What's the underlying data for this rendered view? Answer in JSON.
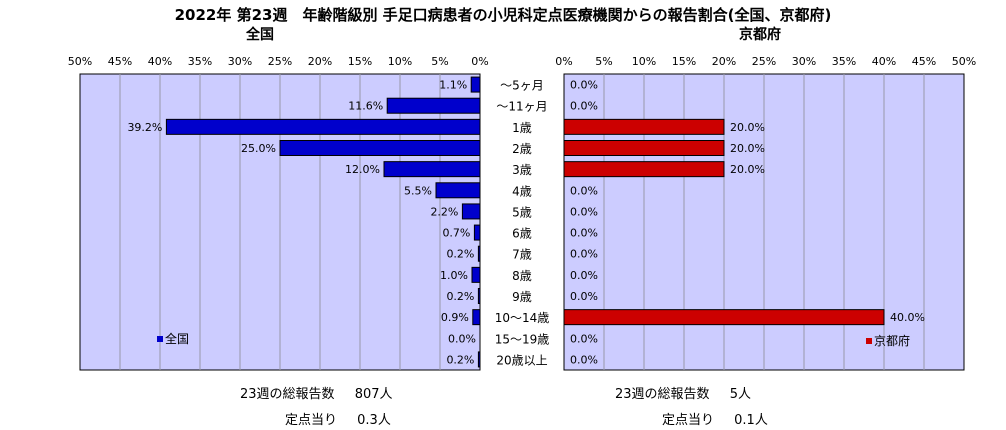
{
  "title": "2022年 第23週　年齢階級別 手足口病患者の小児科定点医療機関からの報告割合(全国、京都府)",
  "colors": {
    "plot_bg": "#ccccff",
    "grid": "#9999aa",
    "national_bar": "#0000cc",
    "kyoto_bar": "#cc0000",
    "bar_stroke": "#000000"
  },
  "footer": {
    "national": {
      "total_label": "23週の総報告数",
      "total_value": "807人",
      "per_label": "定点当り",
      "per_value": "0.3人"
    },
    "kyoto": {
      "total_label": "23週の総報告数",
      "total_value": "5人",
      "per_label": "定点当り",
      "per_value": "0.1人"
    }
  },
  "chart_data": [
    {
      "type": "bar",
      "orientation": "horizontal",
      "subtitle": "全国",
      "x_direction": "reversed",
      "xlim": [
        0,
        50
      ],
      "xticks": [
        "50%",
        "45%",
        "40%",
        "35%",
        "30%",
        "25%",
        "20%",
        "15%",
        "10%",
        "5%",
        "0%"
      ],
      "categories": [
        "～5ヶ月",
        "～11ヶ月",
        "1歳",
        "2歳",
        "3歳",
        "4歳",
        "5歳",
        "6歳",
        "7歳",
        "8歳",
        "9歳",
        "10～14歳",
        "15～19歳",
        "20歳以上"
      ],
      "series": [
        {
          "name": "全国",
          "values": [
            1.1,
            11.6,
            39.2,
            25.0,
            12.0,
            5.5,
            2.2,
            0.7,
            0.2,
            1.0,
            0.2,
            0.9,
            0.0,
            0.2
          ],
          "labels": [
            "1.1%",
            "11.6%",
            "39.2%",
            "25.0%",
            "12.0%",
            "5.5%",
            "2.2%",
            "0.7%",
            "0.2%",
            "1.0%",
            "0.2%",
            "0.9%",
            "0.0%",
            "0.2%"
          ]
        }
      ],
      "legend": "bottom-left",
      "grid": true
    },
    {
      "type": "bar",
      "orientation": "horizontal",
      "subtitle": "京都府",
      "x_direction": "normal",
      "xlim": [
        0,
        50
      ],
      "xticks": [
        "0%",
        "5%",
        "10%",
        "15%",
        "20%",
        "25%",
        "30%",
        "35%",
        "40%",
        "45%",
        "50%"
      ],
      "categories": [
        "～5ヶ月",
        "～11ヶ月",
        "1歳",
        "2歳",
        "3歳",
        "4歳",
        "5歳",
        "6歳",
        "7歳",
        "8歳",
        "9歳",
        "10～14歳",
        "15～19歳",
        "20歳以上"
      ],
      "series": [
        {
          "name": "京都府",
          "values": [
            0.0,
            0.0,
            20.0,
            20.0,
            20.0,
            0.0,
            0.0,
            0.0,
            0.0,
            0.0,
            0.0,
            40.0,
            0.0,
            0.0
          ],
          "labels": [
            "0.0%",
            "0.0%",
            "20.0%",
            "20.0%",
            "20.0%",
            "0.0%",
            "0.0%",
            "0.0%",
            "0.0%",
            "0.0%",
            "0.0%",
            "40.0%",
            "0.0%",
            "0.0%"
          ]
        }
      ],
      "legend": "bottom-right",
      "grid": true
    }
  ]
}
